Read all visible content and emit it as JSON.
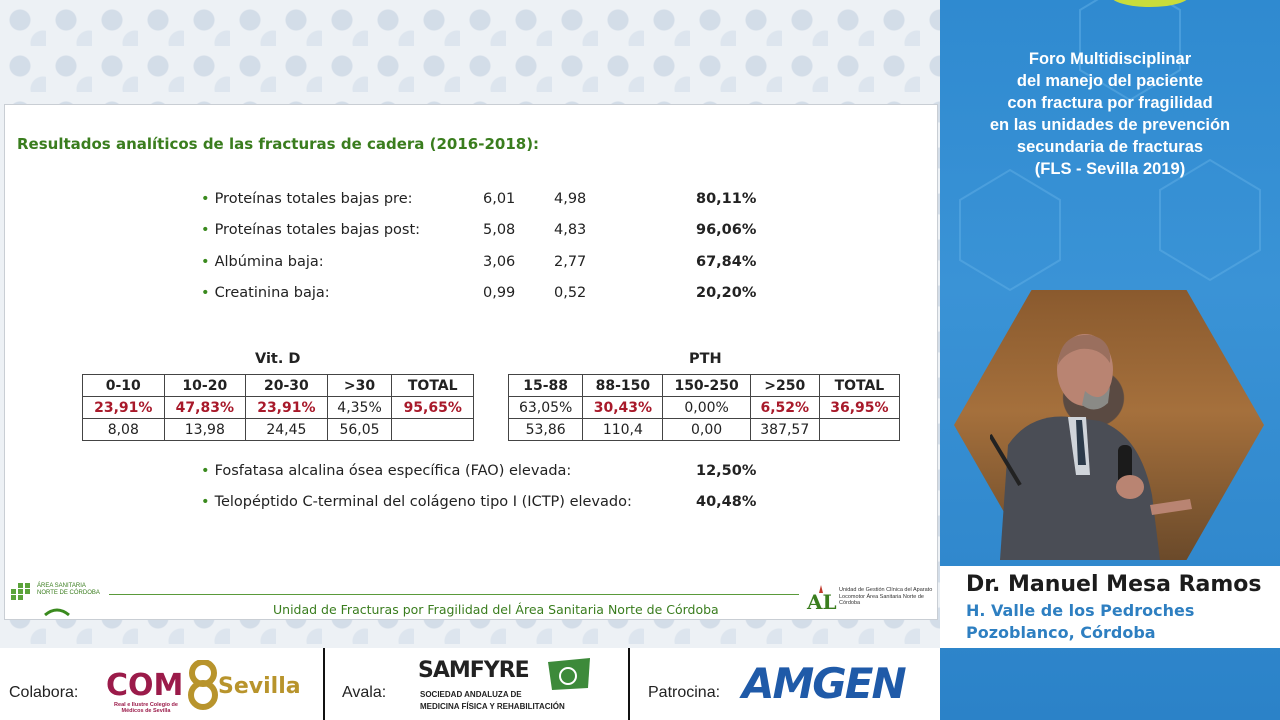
{
  "slide": {
    "title": "Resultados analíticos de las fracturas de cadera (2016-2018):",
    "bullet": "•",
    "rows": [
      {
        "label": "Proteínas totales bajas pre:",
        "v1": "6,01",
        "v2": "4,98",
        "pct": "80,11%"
      },
      {
        "label": "Proteínas totales bajas post:",
        "v1": "5,08",
        "v2": "4,83",
        "pct": "96,06%"
      },
      {
        "label": "Albúmina baja:",
        "v1": "3,06",
        "v2": "2,77",
        "pct": "67,84%"
      },
      {
        "label": "Creatinina baja:",
        "v1": "0,99",
        "v2": "0,52",
        "pct": "20,20%"
      }
    ],
    "vitd": {
      "title": "Vit. D",
      "headers": [
        "0-10",
        "10-20",
        "20-30",
        ">30",
        "TOTAL"
      ],
      "row1": [
        "23,91%",
        "47,83%",
        "23,91%",
        "4,35%",
        "95,65%"
      ],
      "row2": [
        "8,08",
        "13,98",
        "24,45",
        "56,05",
        ""
      ]
    },
    "pth": {
      "title": "PTH",
      "headers": [
        "15-88",
        "88-150",
        "150-250",
        ">250",
        "TOTAL"
      ],
      "row1": [
        "63,05%",
        "30,43%",
        "0,00%",
        "6,52%",
        "36,95%"
      ],
      "row2": [
        "53,86",
        "110,4",
        "0,00",
        "387,57",
        ""
      ]
    },
    "extra_rows": [
      {
        "label": "Fosfatasa alcalina ósea específica (FAO) elevada:",
        "pct": "12,50%"
      },
      {
        "label": "Telopéptido C-terminal del colágeno tipo I  (ICTP) elevado:",
        "pct": "40,48%"
      }
    ],
    "footer": "Unidad de Fracturas por Fragilidad del Área Sanitaria Norte de Córdoba",
    "logo_left_text": "ÁREA SANITARIA NORTE DE CÓRDOBA",
    "logo_right_text": "Unidad de Gestión Clínica del Aparato Locomotor Área Sanitaria Norte de Córdoba",
    "red_color": "#a8192a",
    "green_color": "#3a7d1e"
  },
  "panel": {
    "forum_title": [
      "Foro Multidisciplinar",
      "del manejo del paciente",
      "con fractura por fragilidad",
      "en las unidades de prevención",
      "secundaria de fracturas",
      "(FLS - Sevilla 2019)"
    ],
    "speaker_name": "Dr. Manuel Mesa Ramos",
    "speaker_hospital": "H. Valle de los Pedroches",
    "speaker_city": "Pozoblanco, Córdoba",
    "accent": "#2e7fc1"
  },
  "sponsors": {
    "collab_label": "Colabora:",
    "collab_logo_text": "COM",
    "collab_logo_text2": "Sevilla",
    "collab_logo_sub": "Real e Ilustre Colegio de Médicos de Sevilla",
    "endorse_label": "Avala:",
    "endorse_logo_text": "SAMFYRE",
    "endorse_logo_sub1": "SOCIEDAD ANDALUZA DE",
    "endorse_logo_sub2": "MEDICINA FÍSICA Y REHABILITACIÓN",
    "sponsor_label": "Patrocina:",
    "sponsor_logo_text": "AMGEN"
  }
}
